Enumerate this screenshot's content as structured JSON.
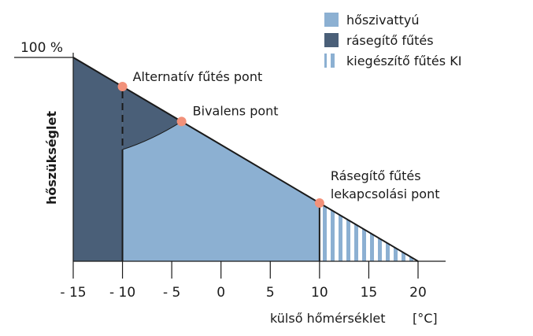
{
  "chart_data": {
    "type": "area",
    "ylabel": "hőszükséglet",
    "xlabel": "külső hőmérséklet",
    "xunit": "[°C]",
    "ytick": "100 %",
    "xlim": [
      -15,
      20
    ],
    "ylim": [
      0,
      100
    ],
    "xticks": [
      -15,
      -10,
      -5,
      0,
      5,
      10,
      15,
      20
    ],
    "xtick_labels": [
      "- 15",
      "- 10",
      "- 5",
      "0",
      "5",
      "10",
      "15",
      "20"
    ],
    "demand_line": [
      {
        "x": -15,
        "y": 100
      },
      {
        "x": 20,
        "y": 0
      }
    ],
    "regions": [
      {
        "name": "hőszivattyú",
        "color": "#8cb0d2"
      },
      {
        "name": "rásegítő fűtés",
        "color": "#4a5f78"
      },
      {
        "name": "kiegészítő fűtés KI",
        "color": "#8cb0d2",
        "pattern": "vertical-stripes"
      }
    ],
    "points": [
      {
        "label": "Alternatív fűtés pont",
        "x": -10,
        "y": 85.7
      },
      {
        "label": "Bivalens pont",
        "x": -4,
        "y": 68.6
      },
      {
        "label": "Rásegítő fűtés",
        "label2": "lekapcsolási pont",
        "x": 10,
        "y": 28.6
      }
    ],
    "point_color": "#f2917a",
    "grid": false,
    "legend_position": "top-right"
  }
}
